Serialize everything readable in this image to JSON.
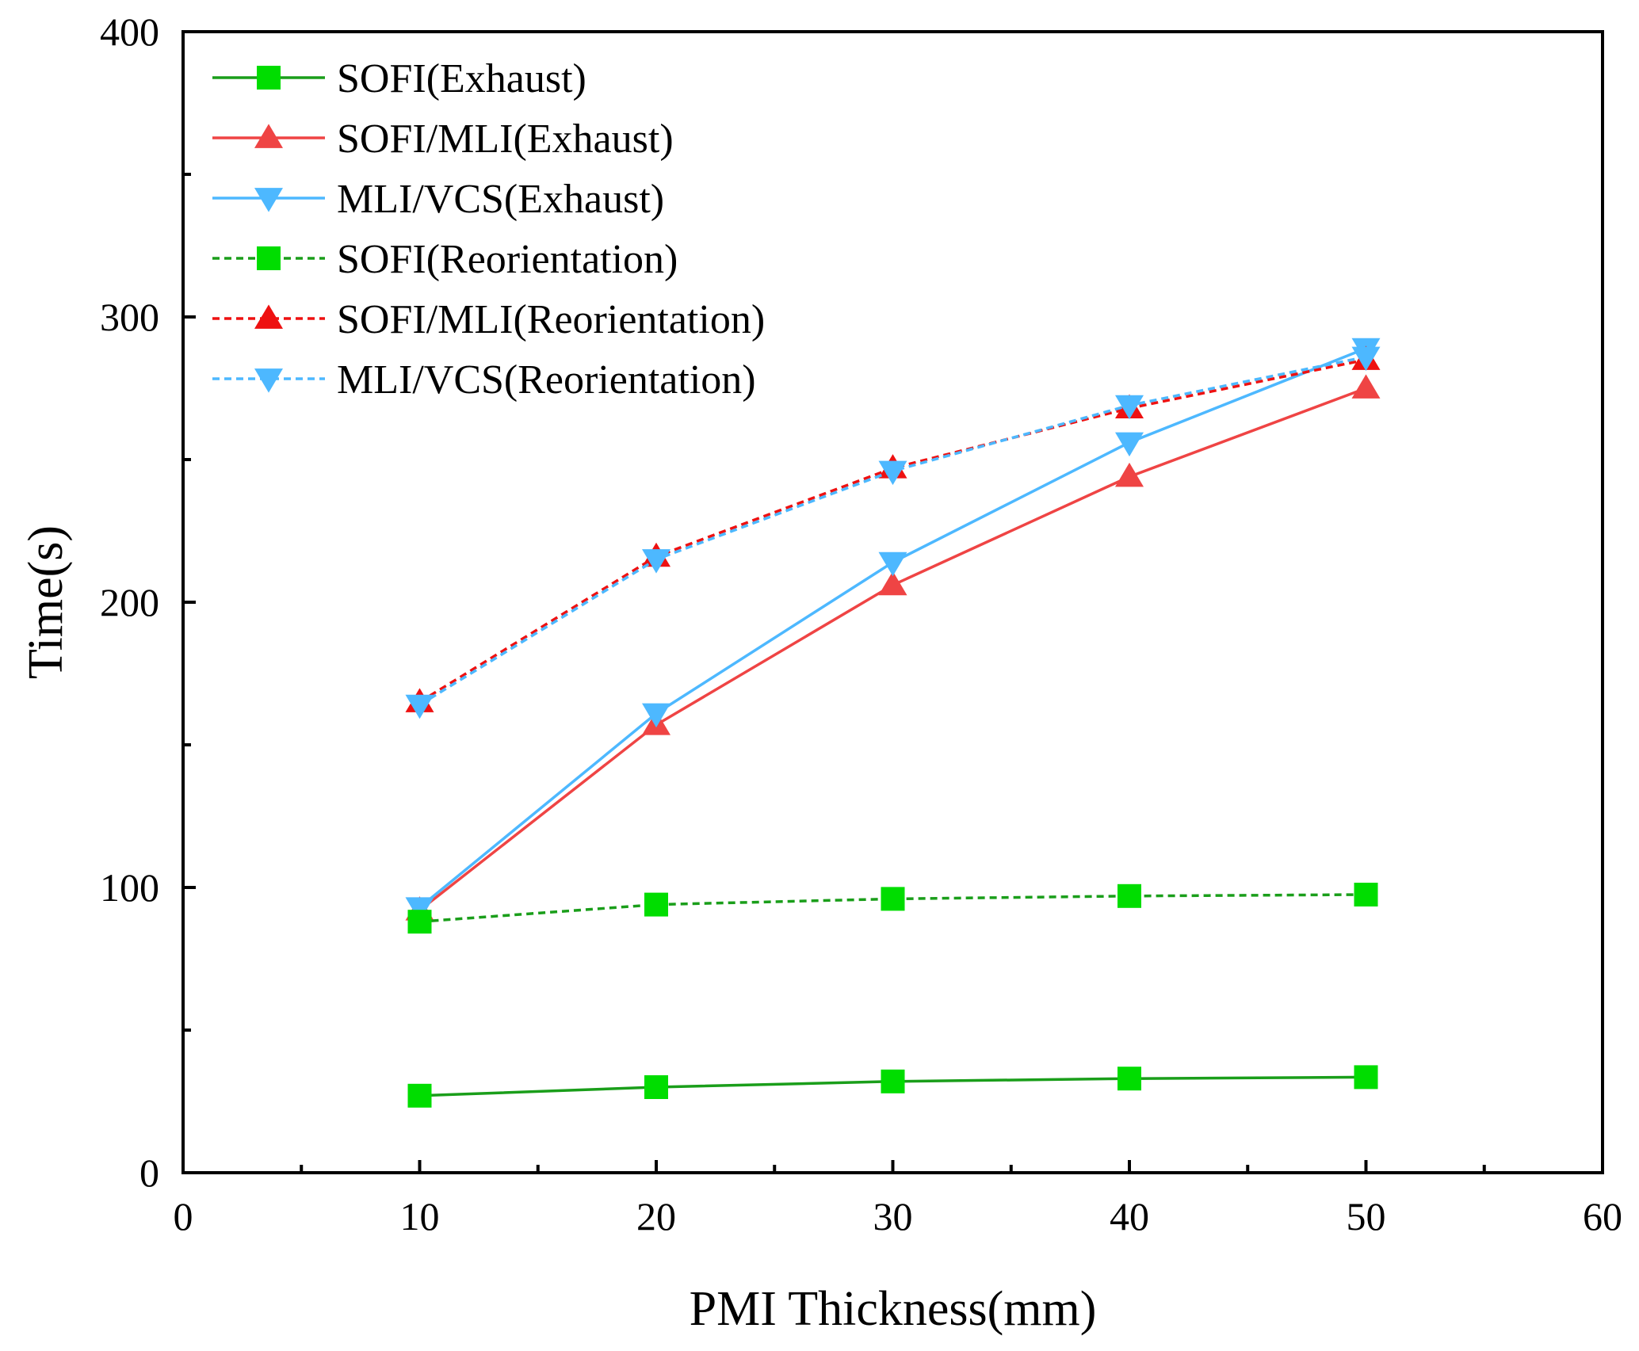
{
  "chart_data": {
    "type": "line",
    "xlabel": "PMI Thickness(mm)",
    "ylabel": "Time(s)",
    "xlim": [
      0,
      60
    ],
    "ylim": [
      0,
      400
    ],
    "x_ticks": [
      0,
      10,
      20,
      30,
      40,
      50,
      60
    ],
    "y_ticks": [
      0,
      100,
      200,
      300,
      400
    ],
    "x_tick_labels": [
      "0",
      "10",
      "20",
      "30",
      "40",
      "50",
      "60"
    ],
    "y_tick_labels": [
      "0",
      "100",
      "200",
      "300",
      "400"
    ],
    "grid": false,
    "legend_position": "top-left",
    "x": [
      10,
      20,
      30,
      40,
      50
    ],
    "series": [
      {
        "name": "SOFI(Exhaust)",
        "values": [
          27,
          30,
          32,
          33,
          33.5
        ],
        "color": "#1a9e1a",
        "marker_color": "#00dd00",
        "marker": "square",
        "line": "solid"
      },
      {
        "name": "SOFI/MLI(Exhaust)",
        "values": [
          92,
          157,
          206,
          244,
          275
        ],
        "color": "#ef4444",
        "marker_color": "#ef4444",
        "marker": "triangle-up",
        "line": "solid"
      },
      {
        "name": "MLI/VCS(Exhaust)",
        "values": [
          93,
          161,
          214,
          256,
          289
        ],
        "color": "#4db8ff",
        "marker_color": "#4db8ff",
        "marker": "triangle-down",
        "line": "solid"
      },
      {
        "name": "SOFI(Reorientation)",
        "values": [
          88,
          94,
          96,
          97,
          97.5
        ],
        "color": "#1a9e1a",
        "marker_color": "#00dd00",
        "marker": "square",
        "line": "dashed"
      },
      {
        "name": "SOFI/MLI(Reorientation)",
        "values": [
          165,
          216,
          247,
          268,
          285
        ],
        "color": "#ee1111",
        "marker_color": "#ee1111",
        "marker": "triangle-up",
        "line": "dashed"
      },
      {
        "name": "MLI/VCS(Reorientation)",
        "values": [
          164,
          215,
          246,
          269,
          286
        ],
        "color": "#4db8ff",
        "marker_color": "#4db8ff",
        "marker": "triangle-down",
        "line": "dashed"
      }
    ]
  }
}
